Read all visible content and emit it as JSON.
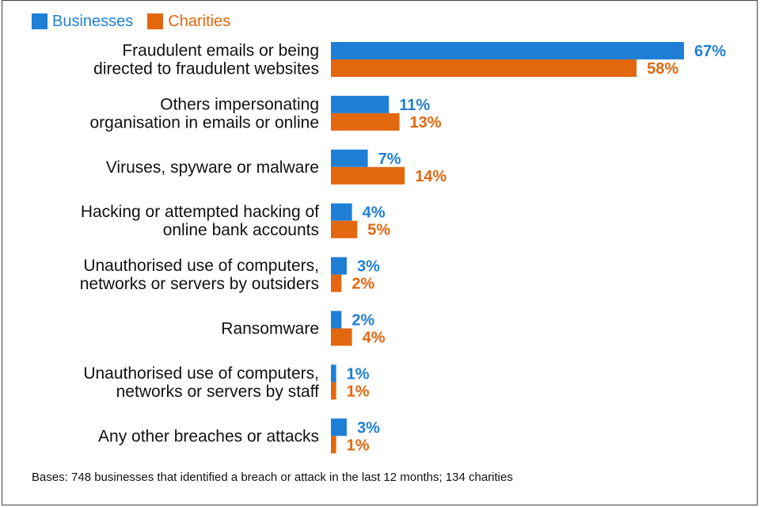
{
  "chart_data": {
    "type": "bar",
    "orientation": "horizontal",
    "categories": [
      "Fraudulent emails or being\ndirected to fraudulent websites",
      "Others impersonating\norganisation in emails or online",
      "Viruses, spyware or malware",
      "Hacking or attempted hacking of\nonline bank accounts",
      "Unauthorised use of computers,\nnetworks or servers by outsiders",
      "Ransomware",
      "Unauthorised use of computers,\nnetworks or servers by staff",
      "Any other breaches or attacks"
    ],
    "series": [
      {
        "name": "Businesses",
        "color": "#1f7fd6",
        "values": [
          67,
          11,
          7,
          4,
          3,
          2,
          1,
          3
        ]
      },
      {
        "name": "Charities",
        "color": "#e2670f",
        "values": [
          58,
          13,
          14,
          5,
          2,
          4,
          1,
          1
        ]
      }
    ],
    "value_suffix": "%",
    "xlim": [
      0,
      67
    ],
    "grid": false,
    "legend_position": "top-left"
  },
  "footnote": "Bases: 748 businesses that identified a breach or attack in the last 12 months; 134 charities"
}
